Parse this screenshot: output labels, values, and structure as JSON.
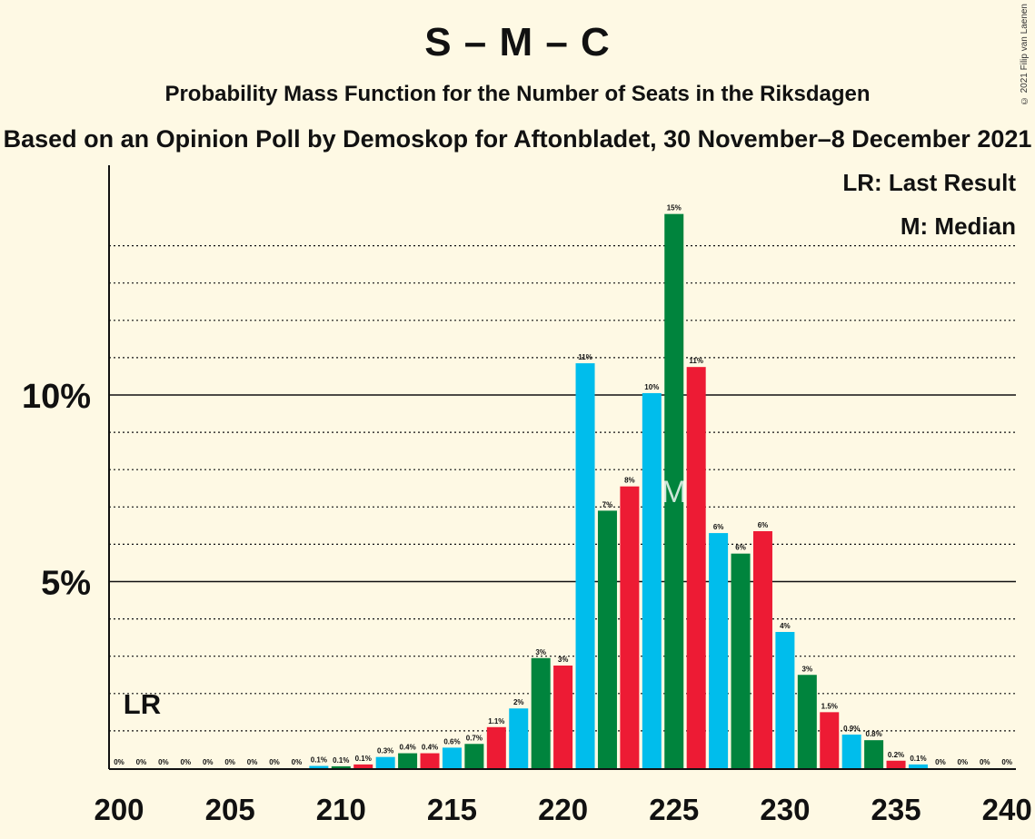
{
  "title": "S – M – C",
  "subtitle": "Probability Mass Function for the Number of Seats in the Riksdagen",
  "source": "Based on an Opinion Poll by Demoskop for Aftonbladet, 30 November–8 December 2021",
  "copyright": "© 2021 Filip van Laenen",
  "legend": {
    "last_result": "LR: Last Result",
    "median": "M: Median"
  },
  "markers": {
    "last_result_label": "LR",
    "last_result_seat": 201,
    "median_label": "M",
    "median_seat": 225
  },
  "colors": {
    "background": "#fef9e4",
    "green": "#00843d",
    "red": "#ed1b34",
    "blue": "#00bdec"
  },
  "chart_data": {
    "type": "bar",
    "xlabel": "",
    "ylabel": "",
    "xlim": [
      200,
      240
    ],
    "ylim": [
      0,
      16
    ],
    "x_ticks": [
      200,
      205,
      210,
      215,
      220,
      225,
      230,
      235,
      240
    ],
    "y_ticks": [
      {
        "value": 5,
        "label": "5%"
      },
      {
        "value": 10,
        "label": "10%"
      }
    ],
    "gridlines": "dotted every 1%, solid at 5% and 10%",
    "seats": [
      200,
      201,
      202,
      203,
      204,
      205,
      206,
      207,
      208,
      209,
      210,
      211,
      212,
      213,
      214,
      215,
      216,
      217,
      218,
      219,
      220,
      221,
      222,
      223,
      224,
      225,
      226,
      227,
      228,
      229,
      230,
      231,
      232,
      233,
      234,
      235,
      236,
      237,
      238,
      239,
      240
    ],
    "values": [
      0,
      0,
      0,
      0,
      0,
      0,
      0,
      0,
      0,
      0.06,
      0.05,
      0.1,
      0.3,
      0.4,
      0.4,
      0.55,
      0.65,
      1.1,
      1.6,
      2.95,
      2.75,
      10.85,
      6.9,
      7.55,
      10.05,
      14.85,
      10.75,
      6.3,
      5.75,
      6.35,
      3.65,
      2.5,
      1.5,
      0.9,
      0.75,
      0.2,
      0.1,
      0,
      0,
      0,
      0
    ],
    "labels": [
      "0%",
      "0%",
      "0%",
      "0%",
      "0%",
      "0%",
      "0%",
      "0%",
      "0%",
      "0.1%",
      "0.1%",
      "0.1%",
      "0.3%",
      "0.4%",
      "0.4%",
      "0.6%",
      "0.7%",
      "1.1%",
      "2%",
      "3%",
      "3%",
      "11%",
      "7%",
      "8%",
      "10%",
      "15%",
      "11%",
      "6%",
      "6%",
      "6%",
      "4%",
      "3%",
      "1.5%",
      "0.9%",
      "0.8%",
      "0.2%",
      "0.1%",
      "0%",
      "0%",
      "0%",
      "0%"
    ]
  }
}
